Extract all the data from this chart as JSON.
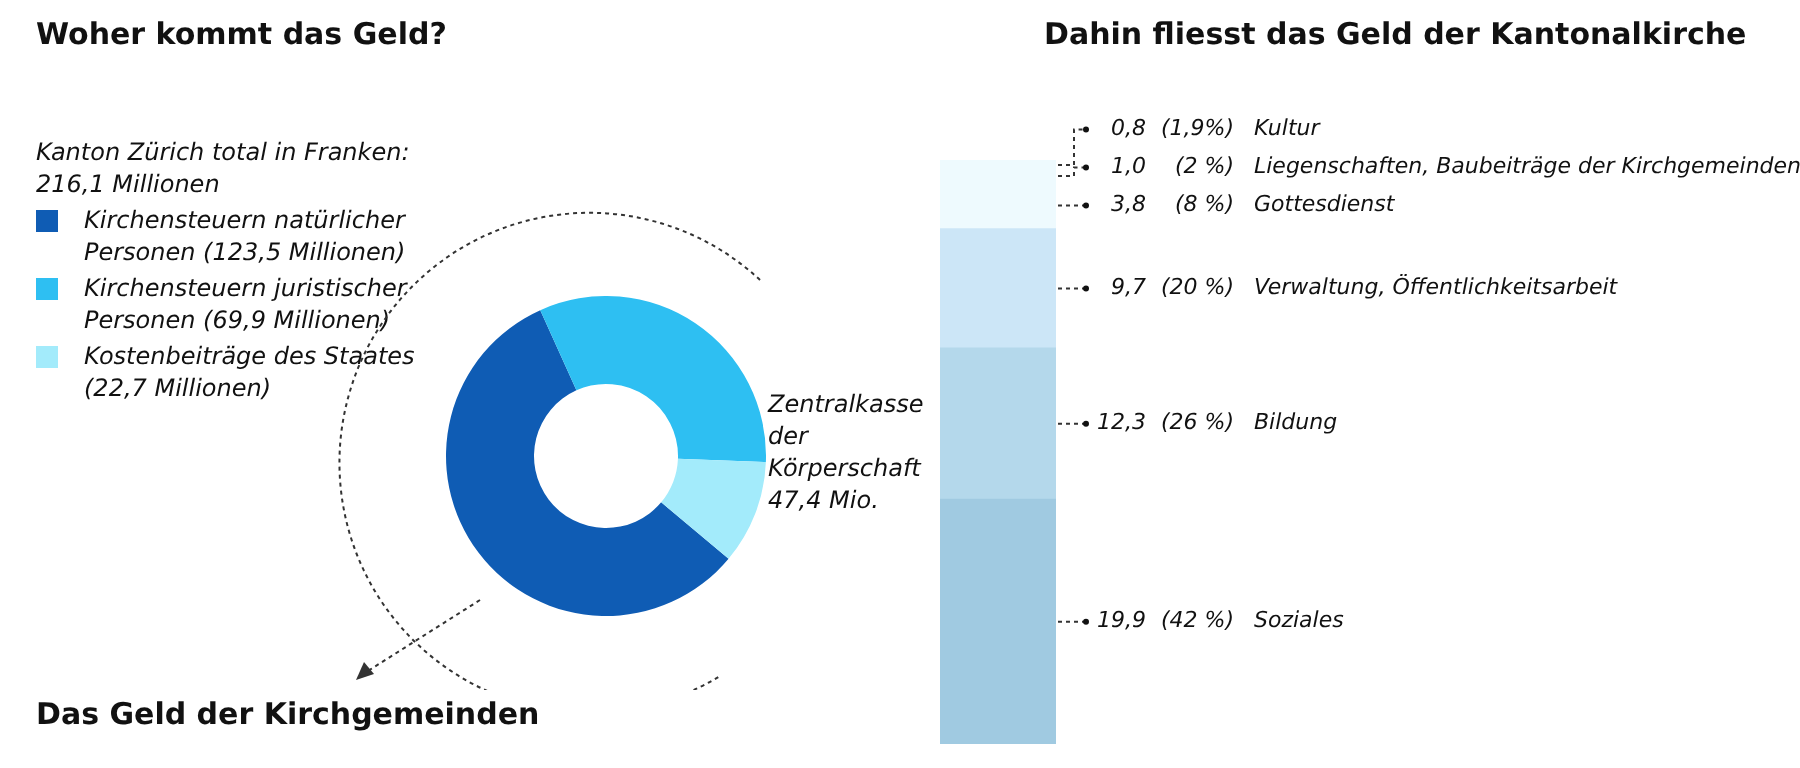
{
  "chart_data": [
    {
      "type": "donut",
      "title": "Woher kommt das Geld?",
      "legend_title": "Kanton Zürich total in Franken: 216,1 Millionen",
      "legend": "top left",
      "categories": [
        "Kirchensteuern natürlicher Personen (123,5 Millionen)",
        "Kirchensteuern juristischer Personen (69,9 Millionen)",
        "Kostenbeiträge des Staates (22,7 Millionen)"
      ],
      "values": [
        123.5,
        69.9,
        22.7
      ],
      "colors": [
        "#0f5cb4",
        "#2ebff2",
        "#a3ebfb"
      ],
      "annotations": [
        "Zentralkasse der Körperschaft 47,4 Mio.",
        "Das Geld der Kirchgemeinden"
      ]
    },
    {
      "type": "bar",
      "title": "Dahin fliesst das Geld der Kantonalkirche",
      "stacked": true,
      "tick_labels": false,
      "categories": [
        null
      ],
      "series": [
        {
          "name": "Soziales",
          "color": "#a0cae1",
          "values": [
            19.9
          ],
          "value_labels": [
            "19,9 (42 %)"
          ]
        },
        {
          "name": "Bildung",
          "color": "#b4d8eb",
          "values": [
            12.3
          ],
          "value_labels": [
            "12,3 (26 %)"
          ]
        },
        {
          "name": "Verwaltung, Öffentlichkeitsarbeit",
          "color": "#cce6f7",
          "values": [
            9.7
          ],
          "value_labels": [
            "9,7 (20 %)"
          ]
        },
        {
          "name": "Gottesdienst",
          "color": "#eefafe",
          "values": [
            3.8
          ],
          "value_labels": [
            "3,8 (8 %)"
          ]
        },
        {
          "name": "Liegenschaften, Baubeiträge der Kirchgemeinden",
          "color": "#eefafe",
          "values": [
            1.0
          ],
          "value_labels": [
            "1,0 (2 %)"
          ]
        },
        {
          "name": "Kultur",
          "color": "#eefafe",
          "values": [
            0.8
          ],
          "value_labels": [
            "0,8 (1,9%)"
          ]
        }
      ]
    }
  ]
}
